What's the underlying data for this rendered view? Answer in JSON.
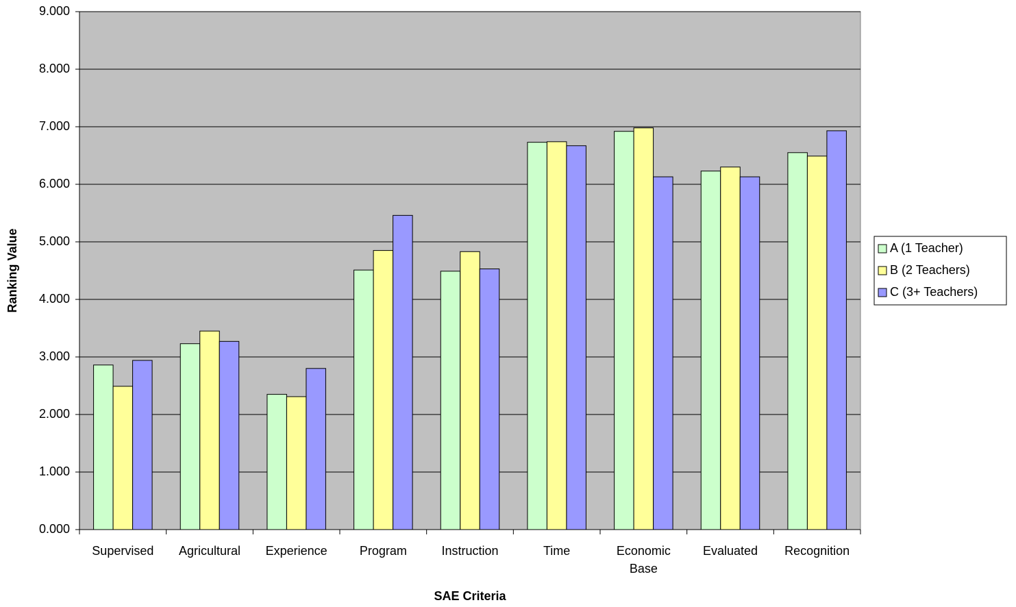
{
  "chart_data": {
    "type": "bar",
    "x_label": "SAE Criteria",
    "y_label": "Ranking Value",
    "categories": [
      "Supervised",
      "Agricultural",
      "Experience",
      "Program",
      "Instruction",
      "Time",
      "Economic Base",
      "Evaluated",
      "Recognition"
    ],
    "series": [
      {
        "name": "A (1 Teacher)",
        "color": "#ccffcc",
        "values": [
          2.86,
          3.23,
          2.35,
          4.51,
          4.49,
          6.73,
          6.92,
          6.23,
          6.55
        ]
      },
      {
        "name": "B (2 Teachers)",
        "color": "#ffff99",
        "values": [
          2.49,
          3.45,
          2.31,
          4.85,
          4.83,
          6.74,
          6.98,
          6.3,
          6.49
        ]
      },
      {
        "name": "C (3+ Teachers)",
        "color": "#9999ff",
        "values": [
          2.94,
          3.27,
          2.8,
          5.46,
          4.53,
          6.67,
          6.13,
          6.13,
          6.93
        ]
      }
    ],
    "ylim": [
      0,
      9
    ],
    "yticks": [
      {
        "value": 0,
        "label": "0.000"
      },
      {
        "value": 1,
        "label": "1.000"
      },
      {
        "value": 2,
        "label": "2.000"
      },
      {
        "value": 3,
        "label": "3.000"
      },
      {
        "value": 4,
        "label": "4.000"
      },
      {
        "value": 5,
        "label": "5.000"
      },
      {
        "value": 6,
        "label": "6.000"
      },
      {
        "value": 7,
        "label": "7.000"
      },
      {
        "value": 8,
        "label": "8.000"
      },
      {
        "value": 9,
        "label": "9.000"
      }
    ],
    "grid": true,
    "plot_background": "#c0c0c0",
    "legend": "right"
  }
}
